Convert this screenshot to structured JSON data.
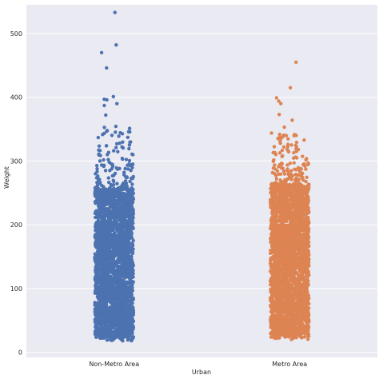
{
  "chart_data": {
    "type": "scatter",
    "subtype": "strip",
    "title": "",
    "xlabel": "Urban",
    "ylabel": "Weight",
    "ylim": [
      -8,
      545
    ],
    "yticks": [
      0,
      100,
      200,
      300,
      400,
      500
    ],
    "grid": true,
    "background": "#eaeaf2",
    "grid_color": "#ffffff",
    "categories": [
      "Non-Metro Area",
      "Metro Area"
    ],
    "series": [
      {
        "category": "Non-Metro Area",
        "color": "#4c72b0",
        "dense_range": [
          22,
          255
        ],
        "sparse_range": [
          255,
          355
        ],
        "min": 18,
        "outliers": [
          533,
          482,
          470,
          446,
          401,
          397,
          396,
          390,
          387,
          372
        ]
      },
      {
        "category": "Metro Area",
        "color": "#dd8452",
        "dense_range": [
          24,
          262
        ],
        "sparse_range": [
          262,
          345
        ],
        "min": 20,
        "outliers": [
          455,
          415,
          399,
          394,
          390,
          373,
          364,
          353
        ]
      }
    ]
  }
}
